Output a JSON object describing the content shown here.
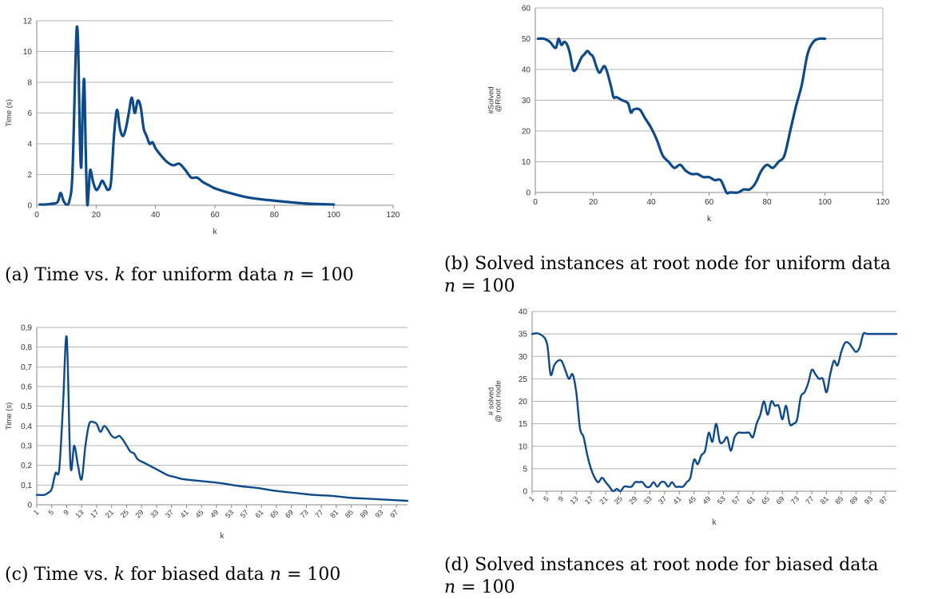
{
  "captions": {
    "a": {
      "prefix": "(a) Time vs. ",
      "var": "k",
      "suffix": " for uniform data ",
      "n": "n",
      "eq": " = 100"
    },
    "b": {
      "line1": "(b) Solved instances at root node for uniform data",
      "n": "n",
      "eq": " = 100"
    },
    "c": {
      "prefix": "(c) Time vs. ",
      "var": "k",
      "suffix": " for biased data ",
      "n": "n",
      "eq": " = 100"
    },
    "d": {
      "line1": "(d) Solved instances at root node for biased data",
      "n": "n",
      "eq": " = 100"
    }
  },
  "colors": {
    "line": "#0d4a8a",
    "grid": "#b3b3b3",
    "axis": "#888888"
  },
  "chart_data": [
    {
      "id": "a",
      "type": "line",
      "xlabel": "k",
      "ylabel": "Time (s)",
      "xlim": [
        0,
        120
      ],
      "ylim": [
        0,
        12
      ],
      "xticks": [
        "0",
        "20",
        "40",
        "60",
        "80",
        "100",
        "120"
      ],
      "yticks": [
        "0",
        "2",
        "4",
        "6",
        "8",
        "10",
        "12"
      ],
      "grid": true,
      "series": [
        {
          "x": [
            1,
            3,
            5,
            7,
            8,
            9,
            10,
            11,
            12,
            13,
            13.5,
            14,
            14.5,
            15,
            15.5,
            16,
            16.5,
            17,
            17.5,
            18,
            19,
            20,
            21,
            22,
            23,
            24,
            25,
            26,
            27,
            28,
            29,
            30,
            31,
            32,
            33,
            34,
            35,
            36,
            37,
            38,
            39,
            40,
            42,
            44,
            46,
            48,
            50,
            52,
            54,
            56,
            58,
            60,
            65,
            70,
            75,
            80,
            85,
            90,
            95,
            100
          ],
          "y": [
            0.05,
            0.05,
            0.1,
            0.2,
            0.8,
            0.3,
            0.05,
            0.3,
            2.0,
            9.0,
            11.6,
            10.0,
            4.5,
            2.5,
            6.5,
            8.1,
            3.5,
            0.1,
            1.0,
            2.3,
            1.5,
            1.0,
            1.2,
            1.6,
            1.3,
            1.0,
            1.5,
            4.5,
            6.2,
            5.0,
            4.5,
            5.0,
            6.0,
            7.0,
            6.0,
            6.8,
            6.4,
            5.0,
            4.5,
            4.0,
            4.1,
            3.7,
            3.2,
            2.8,
            2.6,
            2.7,
            2.3,
            1.8,
            1.8,
            1.5,
            1.3,
            1.1,
            0.8,
            0.55,
            0.4,
            0.3,
            0.2,
            0.12,
            0.08,
            0.05
          ]
        }
      ]
    },
    {
      "id": "b",
      "type": "line",
      "xlabel": "k",
      "ylabel": "#Solved @Root",
      "xlim": [
        0,
        120
      ],
      "ylim": [
        0,
        60
      ],
      "xticks": [
        "0",
        "20",
        "40",
        "60",
        "80",
        "100",
        "120"
      ],
      "yticks": [
        "0",
        "10",
        "20",
        "30",
        "40",
        "50",
        "60"
      ],
      "grid": true,
      "series": [
        {
          "x": [
            1,
            3,
            5,
            7,
            8,
            9,
            10,
            11,
            12,
            13,
            14,
            15,
            16,
            17,
            18,
            19,
            20,
            22,
            24,
            26,
            27,
            28,
            30,
            32,
            33,
            34,
            36,
            38,
            40,
            42,
            44,
            46,
            48,
            50,
            52,
            54,
            56,
            58,
            60,
            62,
            64,
            66,
            67,
            68,
            70,
            72,
            74,
            76,
            78,
            80,
            82,
            84,
            86,
            88,
            90,
            92,
            94,
            96,
            98,
            100
          ],
          "y": [
            50,
            50,
            49,
            47,
            50,
            48,
            49,
            48,
            45,
            40,
            40,
            42,
            44,
            45,
            46,
            45,
            44,
            39,
            41,
            35,
            31,
            31,
            30,
            29,
            26,
            27,
            27,
            24,
            21,
            17,
            12,
            10,
            8,
            9,
            7,
            6,
            6,
            5,
            5,
            4,
            4,
            0,
            0,
            0,
            0,
            1,
            1,
            3,
            7,
            9,
            8,
            10,
            12,
            20,
            28,
            35,
            45,
            49,
            50,
            50
          ]
        }
      ]
    },
    {
      "id": "c",
      "type": "line",
      "xlabel": "k",
      "ylabel": "Time (s)",
      "xlim": [
        1,
        100
      ],
      "ylim": [
        0,
        0.9
      ],
      "xticks": [
        "1",
        "5",
        "9",
        "13",
        "17",
        "21",
        "25",
        "29",
        "33",
        "37",
        "41",
        "45",
        "49",
        "53",
        "57",
        "61",
        "65",
        "69",
        "73",
        "77",
        "81",
        "85",
        "89",
        "93",
        "97"
      ],
      "yticks": [
        "0",
        "0,1",
        "0,2",
        "0,3",
        "0,4",
        "0,5",
        "0,6",
        "0,7",
        "0,8",
        "0,9"
      ],
      "grid": true,
      "series": [
        {
          "x": [
            1,
            3,
            4,
            5,
            6,
            7,
            8,
            9,
            10,
            11,
            12,
            13,
            14,
            15,
            16,
            17,
            18,
            19,
            20,
            21,
            22,
            23,
            24,
            25,
            26,
            27,
            28,
            30,
            32,
            34,
            36,
            38,
            40,
            45,
            50,
            55,
            60,
            65,
            70,
            75,
            80,
            85,
            90,
            95,
            100
          ],
          "y": [
            0.05,
            0.05,
            0.06,
            0.08,
            0.16,
            0.18,
            0.5,
            0.85,
            0.2,
            0.3,
            0.2,
            0.13,
            0.3,
            0.41,
            0.42,
            0.41,
            0.37,
            0.4,
            0.38,
            0.35,
            0.34,
            0.35,
            0.33,
            0.3,
            0.27,
            0.26,
            0.23,
            0.21,
            0.19,
            0.17,
            0.15,
            0.14,
            0.13,
            0.12,
            0.11,
            0.095,
            0.085,
            0.07,
            0.06,
            0.05,
            0.045,
            0.035,
            0.03,
            0.025,
            0.02
          ]
        }
      ]
    },
    {
      "id": "d",
      "type": "line",
      "xlabel": "k",
      "ylabel": "# solved @ root node",
      "xlim": [
        1,
        100
      ],
      "ylim": [
        0,
        40
      ],
      "xticks": [
        "1",
        "5",
        "9",
        "13",
        "17",
        "21",
        "25",
        "29",
        "33",
        "37",
        "41",
        "45",
        "49",
        "53",
        "57",
        "61",
        "65",
        "69",
        "73",
        "77",
        "81",
        "85",
        "89",
        "93",
        "97"
      ],
      "yticks": [
        "0",
        "5",
        "10",
        "15",
        "20",
        "25",
        "30",
        "35",
        "40"
      ],
      "grid": true,
      "series": [
        {
          "x": [
            1,
            3,
            5,
            6,
            7,
            8,
            9,
            10,
            11,
            12,
            13,
            14,
            15,
            16,
            17,
            18,
            19,
            20,
            21,
            22,
            23,
            24,
            25,
            26,
            27,
            28,
            29,
            30,
            31,
            32,
            33,
            34,
            35,
            36,
            37,
            38,
            39,
            40,
            41,
            42,
            43,
            44,
            45,
            46,
            47,
            48,
            49,
            50,
            51,
            52,
            53,
            54,
            55,
            56,
            57,
            58,
            59,
            60,
            61,
            62,
            63,
            64,
            65,
            66,
            67,
            68,
            69,
            70,
            71,
            72,
            73,
            74,
            75,
            76,
            77,
            78,
            79,
            80,
            81,
            82,
            83,
            84,
            85,
            86,
            87,
            88,
            89,
            90,
            91,
            92,
            93,
            94,
            95,
            96,
            97,
            98,
            100
          ],
          "y": [
            35,
            35,
            33,
            26,
            28,
            29,
            29,
            27,
            25,
            26,
            22,
            14,
            12,
            8,
            5,
            3,
            2,
            3,
            2,
            1,
            0,
            0.5,
            0,
            1,
            1,
            1,
            2,
            2,
            2,
            1,
            1,
            2,
            1,
            2,
            2,
            1,
            2,
            1,
            1,
            1,
            2,
            3,
            7,
            6,
            8,
            9,
            13,
            11,
            15,
            11,
            11,
            12,
            9,
            12,
            13,
            13,
            13,
            13,
            12,
            15,
            17,
            20,
            17,
            20,
            19,
            19,
            16,
            19,
            15,
            15,
            16,
            21,
            22,
            24,
            27,
            26,
            25,
            25,
            22,
            26,
            29,
            28,
            31,
            33,
            33,
            32,
            31,
            32,
            35,
            35,
            35,
            35,
            35,
            35,
            35,
            35,
            35
          ]
        }
      ]
    }
  ]
}
